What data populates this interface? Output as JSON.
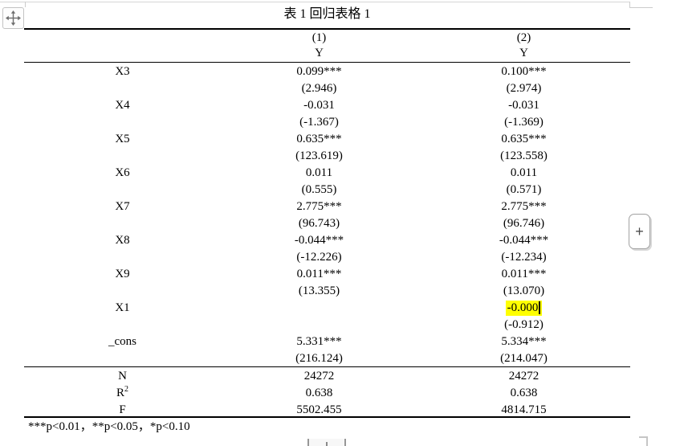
{
  "table": {
    "title": "表 1 回归表格 1",
    "columns": [
      {
        "num": "(1)",
        "dv": "Y"
      },
      {
        "num": "(2)",
        "dv": "Y"
      }
    ],
    "body_lines": [
      {
        "label": "X3",
        "c1": "0.099***",
        "c2": "0.100***"
      },
      {
        "label": "",
        "c1": "(2.946)",
        "c2": "(2.974)"
      },
      {
        "label": "X4",
        "c1": "-0.031",
        "c2": "-0.031"
      },
      {
        "label": "",
        "c1": "(-1.367)",
        "c2": "(-1.369)"
      },
      {
        "label": "X5",
        "c1": "0.635***",
        "c2": "0.635***"
      },
      {
        "label": "",
        "c1": "(123.619)",
        "c2": "(123.558)"
      },
      {
        "label": "X6",
        "c1": "0.011",
        "c2": "0.011"
      },
      {
        "label": "",
        "c1": "(0.555)",
        "c2": "(0.571)"
      },
      {
        "label": "X7",
        "c1": "2.775***",
        "c2": "2.775***"
      },
      {
        "label": "",
        "c1": "(96.743)",
        "c2": "(96.746)"
      },
      {
        "label": "X8",
        "c1": "-0.044***",
        "c2": "-0.044***"
      },
      {
        "label": "",
        "c1": "(-12.226)",
        "c2": "(-12.234)"
      },
      {
        "label": "X9",
        "c1": "0.011***",
        "c2": "0.011***"
      },
      {
        "label": "",
        "c1": "(13.355)",
        "c2": "(13.070)"
      },
      {
        "label": "X1",
        "c1": "",
        "c2": "-0.000",
        "highlight_c2": true,
        "cursor_after_c2": true
      },
      {
        "label": "",
        "c1": "",
        "c2": "(-0.912)"
      },
      {
        "label": "_cons",
        "c1": "5.331***",
        "c2": "5.334***"
      },
      {
        "label": "",
        "c1": "(216.124)",
        "c2": "(214.047)"
      }
    ],
    "stats": [
      {
        "label": "N",
        "sup": "",
        "v1": "24272",
        "v2": "24272"
      },
      {
        "label": "R",
        "sup": "2",
        "v1": "0.638",
        "v2": "0.638"
      },
      {
        "label": "F",
        "sup": "",
        "v1": "5502.455",
        "v2": "4814.715"
      }
    ],
    "footnote": "***p<0.01，**p<0.05，*p<0.10"
  },
  "controls": {
    "move_handle_icon": "move-icon",
    "plus_button_label": "+"
  },
  "colors": {
    "highlight": "#ffff00",
    "table_border": "#000000",
    "ui_gray": "#c6c6c6"
  }
}
